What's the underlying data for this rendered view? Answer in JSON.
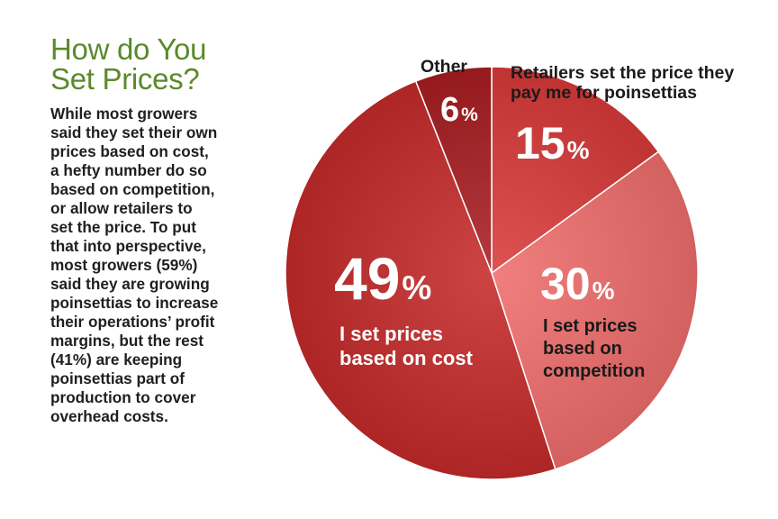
{
  "title_lines": [
    "How do You",
    "Set Prices?"
  ],
  "body_lines": [
    "While most growers",
    "said they set their own",
    "prices based on cost,",
    "a hefty number do so",
    "based on competition,",
    "or allow retailers to",
    "set the price. To put",
    "that into perspective,",
    "most growers (59%)",
    "said they are growing",
    "poinsettias to increase",
    "their operations’ profit",
    "margins, but the rest",
    "(41%) are keeping",
    "poinsettias part of",
    "production to cover",
    "overhead costs."
  ],
  "colors": {
    "title": "#5a8a2a",
    "body_text": "#1f1f1f",
    "label_dark": "#1a1a1a",
    "label_light": "#ffffff"
  },
  "chart_data": {
    "type": "pie",
    "title": "How do You Set Prices?",
    "start": "12 o'clock",
    "direction": "clockwise",
    "slices": [
      {
        "key": "retailers",
        "value": 15,
        "percent_label": "15",
        "name_lines": [
          "Retailers set the price they",
          "pay me for poinsettias"
        ],
        "color": "#d93a3a",
        "label_color": "light",
        "name_color": "dark"
      },
      {
        "key": "competition",
        "value": 30,
        "percent_label": "30",
        "name_lines": [
          "I set prices",
          "based on",
          "competition"
        ],
        "color": "#ef6e6c",
        "label_color": "light",
        "name_color": "dark"
      },
      {
        "key": "cost",
        "value": 49,
        "percent_label": "49",
        "name_lines": [
          "I set prices",
          "based on cost"
        ],
        "color": "#c52a2a",
        "label_color": "light",
        "name_color": "light"
      },
      {
        "key": "other",
        "value": 6,
        "percent_label": "6",
        "name_lines": [
          "Other"
        ],
        "color": "#a81e22",
        "label_color": "light",
        "name_color": "dark"
      }
    ],
    "percent_sign": "%"
  }
}
